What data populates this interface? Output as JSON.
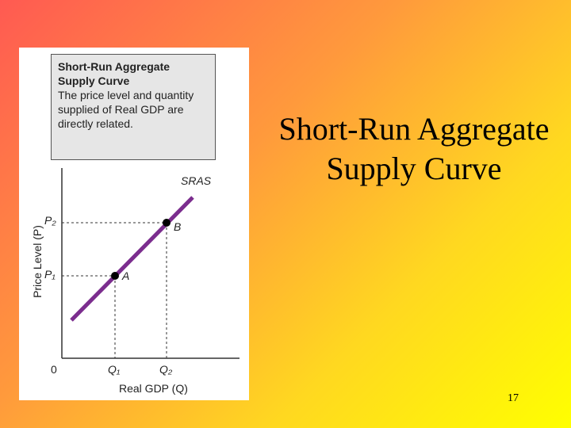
{
  "slide": {
    "title": "Short-Run Aggregate Supply Curve",
    "page_number": "17"
  },
  "figure": {
    "caption": {
      "title": "Short-Run Aggregate Supply Curve",
      "text": "The price level and quantity supplied of Real GDP are directly related."
    },
    "curve_label": "SRAS",
    "y_axis_label": "Price Level (P)",
    "x_axis_label": "Real GDP (Q)",
    "origin": "0",
    "points": [
      {
        "label": "A",
        "price": "P₁",
        "quantity": "Q₁"
      },
      {
        "label": "B",
        "price": "P₂",
        "quantity": "Q₂"
      }
    ]
  }
}
